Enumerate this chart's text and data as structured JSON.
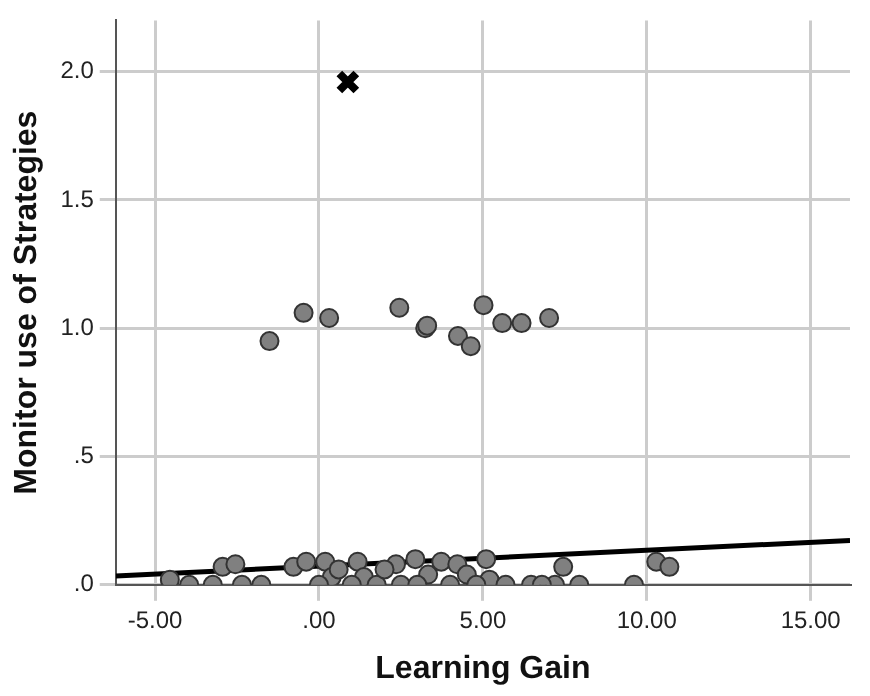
{
  "chart_data": {
    "type": "scatter",
    "xlabel": "Learning Gain",
    "ylabel": "Monitor use of Strategies",
    "xlim": [
      -6.2,
      16.2
    ],
    "ylim": [
      0,
      2.2
    ],
    "xticks": [
      {
        "value": -5,
        "label": "-5.00"
      },
      {
        "value": 0,
        "label": ".00"
      },
      {
        "value": 5,
        "label": "5.00"
      },
      {
        "value": 10,
        "label": "10.00"
      },
      {
        "value": 15,
        "label": "15.00"
      }
    ],
    "yticks": [
      {
        "value": 0,
        "label": ".0"
      },
      {
        "value": 0.5,
        "label": ".5"
      },
      {
        "value": 1,
        "label": "1.0"
      },
      {
        "value": 1.5,
        "label": "1.5"
      },
      {
        "value": 2,
        "label": "2.0"
      }
    ],
    "grid": true,
    "legend": false,
    "series": [
      {
        "marker": "circle",
        "color": "#808080",
        "x": [
          -1.51,
          -0.47,
          0.31,
          2.45,
          3.24,
          3.3,
          4.24,
          4.63,
          5.02,
          5.59,
          6.18,
          7.02,
          -4.55,
          -3.96,
          -3.24,
          -2.94,
          -2.55,
          -2.35,
          -1.76,
          -0.78,
          -0.39,
          0.19,
          0.39,
          1.18,
          1.37,
          1.76,
          2.35,
          2.94,
          3.33,
          3.73,
          4.22,
          4.51,
          5.1,
          5.2,
          5.69,
          6.47,
          7.45,
          7.94,
          9.61,
          10.29,
          10.69,
          0.0,
          1.0,
          2.5,
          3.0,
          4.0,
          4.8,
          0.6,
          2.0,
          7.2,
          6.8
        ],
        "values": [
          0.95,
          1.06,
          1.04,
          1.08,
          1.0,
          1.01,
          0.97,
          0.93,
          1.09,
          1.02,
          1.02,
          1.04,
          0.02,
          0,
          0,
          0.07,
          0.08,
          0,
          0,
          0.07,
          0.09,
          0.09,
          0.03,
          0.09,
          0.03,
          0,
          0.08,
          0.1,
          0.04,
          0.09,
          0.08,
          0.04,
          0.1,
          0.02,
          0,
          0,
          0.07,
          0,
          0,
          0.09,
          0.07,
          0,
          0,
          0,
          0,
          0,
          0,
          0.06,
          0.06,
          0,
          0
        ]
      },
      {
        "type": "scatter",
        "marker": "cross",
        "color": "#000000",
        "x": [
          0.88
        ],
        "values": [
          1.96
        ]
      },
      {
        "type": "line",
        "marker": "none",
        "line_style": "solid",
        "color": "#000000",
        "x": [
          -6.2,
          16.2
        ],
        "values": [
          0.034,
          0.173
        ]
      }
    ]
  }
}
